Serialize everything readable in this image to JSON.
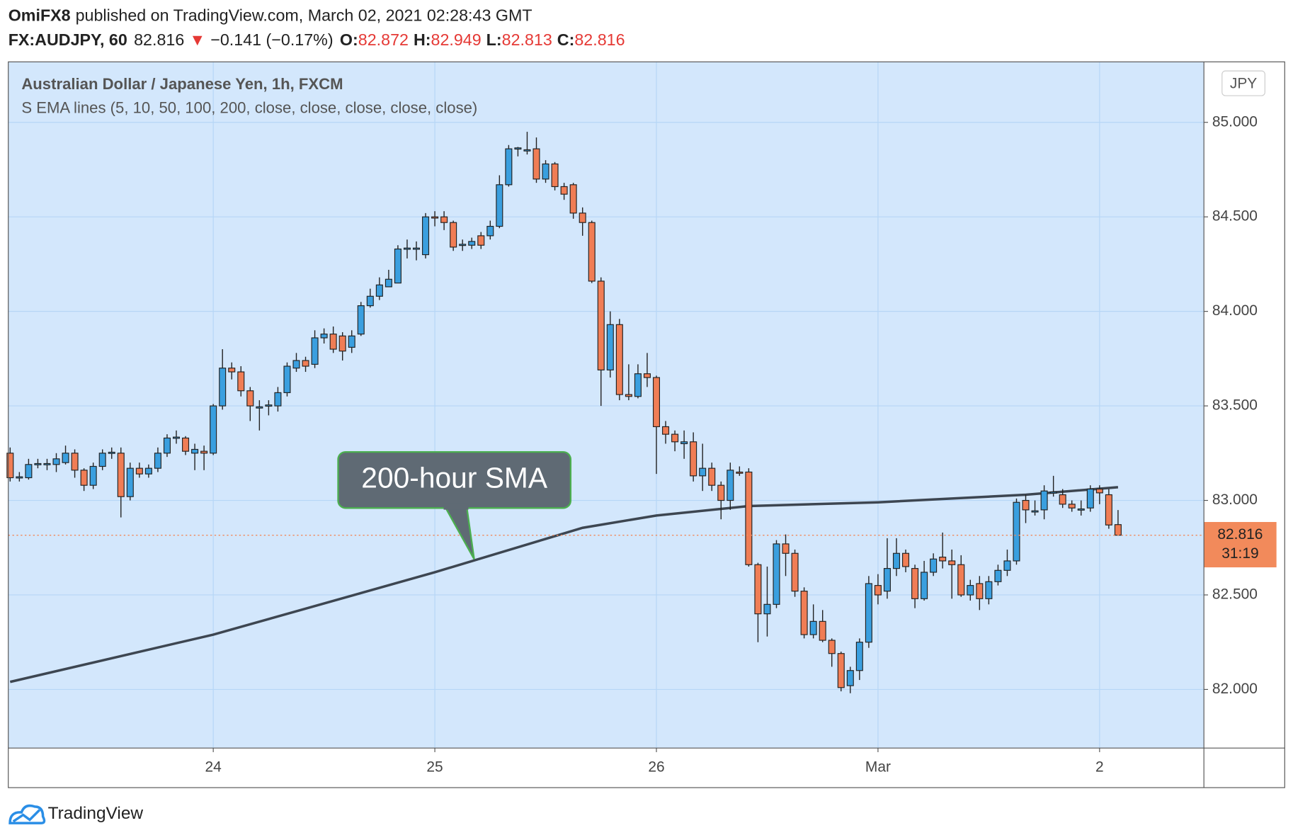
{
  "header": {
    "author": "OmiFX8",
    "published": "published on TradingView.com, March 02, 2021 02:28:43 GMT",
    "symbol": "FX:AUDJPY, 60",
    "price": 82.816,
    "arrow": "▼",
    "change": "−0.141 (−0.17%)",
    "ohlc": [
      {
        "label": "O:",
        "value": 82.872
      },
      {
        "label": "H:",
        "value": 82.949
      },
      {
        "label": "L:",
        "value": 82.813
      },
      {
        "label": "C:",
        "value": 82.816
      }
    ]
  },
  "footer": {
    "brand": "TradingView"
  },
  "chart_data": {
    "type": "candlestick",
    "title": "Australian Dollar / Japanese Yen, 1h, FXCM",
    "subtitle": "S EMA lines (5, 10, 50, 100, 200, close, close, close, close, close)",
    "currency": "JPY",
    "annotation": "200-hour SMA",
    "up_color": "#3a9fdf",
    "down_color": "#f07d55",
    "grid": true,
    "x": [
      0,
      1,
      2,
      3,
      4,
      5,
      6,
      7,
      8,
      9,
      10,
      11,
      12,
      13,
      14,
      15,
      16,
      17,
      18,
      19,
      20,
      21,
      22,
      23,
      24,
      25,
      26,
      27,
      28,
      29,
      30,
      31,
      32,
      33,
      34,
      35,
      36,
      37,
      38,
      39,
      40,
      41,
      42,
      43,
      44,
      45,
      46,
      47,
      48,
      49,
      50,
      51,
      52,
      53,
      54,
      55,
      56,
      57,
      58,
      59,
      60,
      61,
      62,
      63,
      64,
      65,
      66,
      67,
      68,
      69,
      70,
      71,
      72,
      73,
      74,
      75,
      76,
      77,
      78,
      79,
      80,
      81,
      82,
      83,
      84,
      85,
      86,
      87,
      88,
      89,
      90,
      91,
      92,
      93,
      94,
      95,
      96,
      97,
      98,
      99,
      100,
      101,
      102,
      103,
      104,
      105,
      106,
      107,
      108,
      109,
      110,
      111,
      112,
      113,
      114,
      115,
      116,
      117,
      118,
      119,
      120
    ],
    "open": [
      83.25,
      83.12,
      83.12,
      83.19,
      83.19,
      83.19,
      83.2,
      83.25,
      83.16,
      83.08,
      83.18,
      83.25,
      83.25,
      83.02,
      83.17,
      83.14,
      83.17,
      83.25,
      83.33,
      83.33,
      83.25,
      83.26,
      83.25,
      83.5,
      83.7,
      83.68,
      83.58,
      83.49,
      83.5,
      83.5,
      83.57,
      83.7,
      83.74,
      83.72,
      83.86,
      83.88,
      83.87,
      83.81,
      83.88,
      84.03,
      84.08,
      84.13,
      84.15,
      84.33,
      84.33,
      84.3,
      84.5,
      84.5,
      84.47,
      84.35,
      84.35,
      84.4,
      84.4,
      84.45,
      84.67,
      84.86,
      84.85,
      84.86,
      84.7,
      84.78,
      84.66,
      84.67,
      84.52,
      84.47,
      84.16,
      83.69,
      83.93,
      83.56,
      83.55,
      83.67,
      83.65,
      83.39,
      83.35,
      83.3,
      83.31,
      83.13,
      83.17,
      83.08,
      83.0,
      83.15,
      83.15,
      82.66,
      82.4,
      82.45,
      82.77,
      82.72,
      82.52,
      82.29,
      82.36,
      82.26,
      82.19,
      82.02,
      82.1,
      82.25,
      82.55,
      82.52,
      82.64,
      82.72,
      82.64,
      82.48,
      82.62,
      82.7,
      82.68,
      82.66,
      82.5,
      82.56,
      82.48,
      82.57,
      82.63,
      82.68,
      83.0,
      82.94,
      82.95,
      83.04,
      83.03,
      82.98,
      82.95,
      82.96,
      83.06,
      83.03,
      82.872
    ],
    "high": [
      83.28,
      83.15,
      83.22,
      83.22,
      83.22,
      83.25,
      83.29,
      83.27,
      83.17,
      83.2,
      83.27,
      83.28,
      83.28,
      83.2,
      83.2,
      83.19,
      83.28,
      83.35,
      83.37,
      83.34,
      83.3,
      83.29,
      83.51,
      83.8,
      83.73,
      83.71,
      83.6,
      83.53,
      83.53,
      83.6,
      83.73,
      83.78,
      83.76,
      83.9,
      83.91,
      83.92,
      83.89,
      83.9,
      84.05,
      84.12,
      84.18,
      84.22,
      84.35,
      84.38,
      84.37,
      84.52,
      84.53,
      84.53,
      84.48,
      84.38,
      84.39,
      84.42,
      84.48,
      84.72,
      84.88,
      84.87,
      84.95,
      84.92,
      84.8,
      84.79,
      84.68,
      84.68,
      84.55,
      84.48,
      84.18,
      84.0,
      83.96,
      83.72,
      83.72,
      83.78,
      83.66,
      83.42,
      83.37,
      83.37,
      83.36,
      83.3,
      83.2,
      83.1,
      83.2,
      83.18,
      83.17,
      82.67,
      82.65,
      82.79,
      82.82,
      82.74,
      82.54,
      82.45,
      82.42,
      82.27,
      82.2,
      82.12,
      82.27,
      82.6,
      82.61,
      82.8,
      82.8,
      82.74,
      82.66,
      82.68,
      82.72,
      82.83,
      82.74,
      82.71,
      82.58,
      82.6,
      82.6,
      82.66,
      82.74,
      83.01,
      83.03,
      83.0,
      83.08,
      83.13,
      83.06,
      83.0,
      83.0,
      83.08,
      83.08,
      83.06,
      82.949
    ],
    "low": [
      83.1,
      83.1,
      83.11,
      83.17,
      83.16,
      83.15,
      83.19,
      83.12,
      83.05,
      83.06,
      83.16,
      83.22,
      82.91,
      83.0,
      83.12,
      83.12,
      83.15,
      83.23,
      83.3,
      83.24,
      83.16,
      83.16,
      83.24,
      83.48,
      83.64,
      83.55,
      83.42,
      83.37,
      83.45,
      83.47,
      83.55,
      83.68,
      83.68,
      83.7,
      83.83,
      83.78,
      83.74,
      83.78,
      83.87,
      84.02,
      84.06,
      84.13,
      84.15,
      84.28,
      84.27,
      84.28,
      84.45,
      84.43,
      84.32,
      84.32,
      84.33,
      84.33,
      84.38,
      84.44,
      84.66,
      84.82,
      84.83,
      84.68,
      84.68,
      84.64,
      84.59,
      84.49,
      84.4,
      84.15,
      83.5,
      83.65,
      83.53,
      83.53,
      83.54,
      83.6,
      83.14,
      83.3,
      83.26,
      83.22,
      83.1,
      83.05,
      83.05,
      82.9,
      82.95,
      83.13,
      82.65,
      82.25,
      82.28,
      82.43,
      82.6,
      82.49,
      82.27,
      82.27,
      82.25,
      82.12,
      81.99,
      81.98,
      82.05,
      82.22,
      82.45,
      82.48,
      82.6,
      82.62,
      82.43,
      82.47,
      82.6,
      82.64,
      82.48,
      82.49,
      82.47,
      82.42,
      82.45,
      82.55,
      82.6,
      82.66,
      82.88,
      82.92,
      82.9,
      83.02,
      82.96,
      82.94,
      82.92,
      82.94,
      82.98,
      82.85,
      82.813
    ],
    "close": [
      83.12,
      83.125,
      83.19,
      83.195,
      83.195,
      83.22,
      83.25,
      83.16,
      83.08,
      83.18,
      83.25,
      83.255,
      83.02,
      83.17,
      83.14,
      83.17,
      83.25,
      83.33,
      83.335,
      83.26,
      83.27,
      83.25,
      83.5,
      83.7,
      83.68,
      83.58,
      83.5,
      83.495,
      83.505,
      83.57,
      83.71,
      83.74,
      83.71,
      83.86,
      83.88,
      83.8,
      83.79,
      83.87,
      84.03,
      84.08,
      84.14,
      84.17,
      84.33,
      84.335,
      84.335,
      84.5,
      84.495,
      84.47,
      84.34,
      84.355,
      84.37,
      84.35,
      84.45,
      84.67,
      84.86,
      84.865,
      84.855,
      84.7,
      84.78,
      84.66,
      84.62,
      84.52,
      84.47,
      84.16,
      83.69,
      83.93,
      83.56,
      83.55,
      83.67,
      83.65,
      83.39,
      83.35,
      83.31,
      83.31,
      83.13,
      83.17,
      83.08,
      83.0,
      83.16,
      83.145,
      82.66,
      82.4,
      82.45,
      82.77,
      82.72,
      82.52,
      82.29,
      82.36,
      82.26,
      82.19,
      82.01,
      82.1,
      82.25,
      82.56,
      82.5,
      82.64,
      82.72,
      82.65,
      82.48,
      82.62,
      82.69,
      82.68,
      82.66,
      82.5,
      82.55,
      82.48,
      82.57,
      82.63,
      82.68,
      82.99,
      82.95,
      82.945,
      83.05,
      83.045,
      82.98,
      82.96,
      82.955,
      83.06,
      83.04,
      82.87,
      82.816
    ],
    "sma": {
      "color": "#3d4651",
      "x": [
        0,
        22,
        46,
        62,
        70,
        80,
        94,
        110,
        120
      ],
      "values": [
        82.04,
        82.29,
        82.62,
        82.855,
        82.92,
        82.97,
        82.99,
        83.03,
        83.07
      ]
    },
    "last_price": {
      "value": 82.816,
      "countdown": "31:19",
      "color": "#f28a5b"
    },
    "xlim": [
      -0.2,
      129.3
    ],
    "xticks": [
      {
        "value": 22,
        "label": "24"
      },
      {
        "value": 46,
        "label": "25"
      },
      {
        "value": 70,
        "label": "26"
      },
      {
        "value": 94,
        "label": "Mar"
      },
      {
        "value": 118,
        "label": "2"
      }
    ],
    "ylim": [
      81.69,
      85.32
    ],
    "yticks": [
      {
        "value": 82,
        "label": "82.000"
      },
      {
        "value": 82.5,
        "label": "82.500"
      },
      {
        "value": 83,
        "label": "83.000"
      },
      {
        "value": 83.5,
        "label": "83.500"
      },
      {
        "value": 84,
        "label": "84.000"
      },
      {
        "value": 84.5,
        "label": "84.500"
      },
      {
        "value": 85,
        "label": "85.000"
      }
    ]
  }
}
